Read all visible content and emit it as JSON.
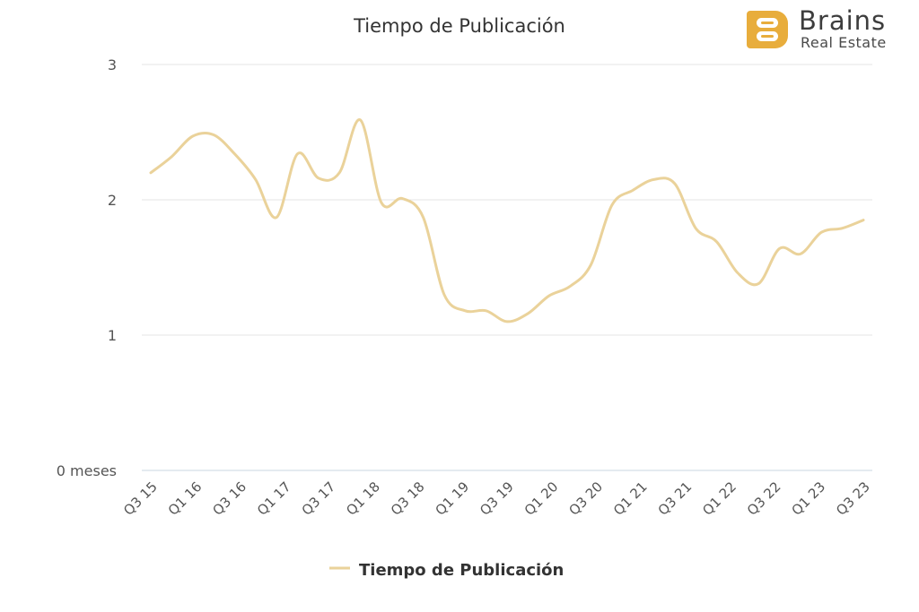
{
  "logo": {
    "icon": "brains-logo-icon",
    "brand": "Brains",
    "sub": "Real Estate",
    "color": "#e8ad3c"
  },
  "chart_data": {
    "type": "line",
    "title": "Tiempo de Publicación",
    "ylim": [
      0,
      3
    ],
    "y_ticks": [
      "0 meses",
      "1",
      "2",
      "3"
    ],
    "x_labels": [
      "Q3 15",
      "Q1 16",
      "Q3 16",
      "Q1 17",
      "Q3 17",
      "Q1 18",
      "Q3 18",
      "Q1 19",
      "Q3 19",
      "Q1 20",
      "Q3 20",
      "Q1 21",
      "Q3 21",
      "Q1 22",
      "Q3 22",
      "Q1 23",
      "Q3 23"
    ],
    "grid": true,
    "legend": "bottom",
    "series": [
      {
        "name": "Tiempo de Publicación",
        "color": "#ead29a",
        "values": [
          2.2,
          2.32,
          2.47,
          2.48,
          2.34,
          2.15,
          1.87,
          2.34,
          2.16,
          2.2,
          2.59,
          1.98,
          2.01,
          1.87,
          1.3,
          1.18,
          1.18,
          1.1,
          1.16,
          1.29,
          1.36,
          1.52,
          1.96,
          2.07,
          2.15,
          2.12,
          1.79,
          1.69,
          1.46,
          1.38,
          1.64,
          1.6,
          1.76,
          1.79,
          1.85
        ]
      }
    ]
  }
}
